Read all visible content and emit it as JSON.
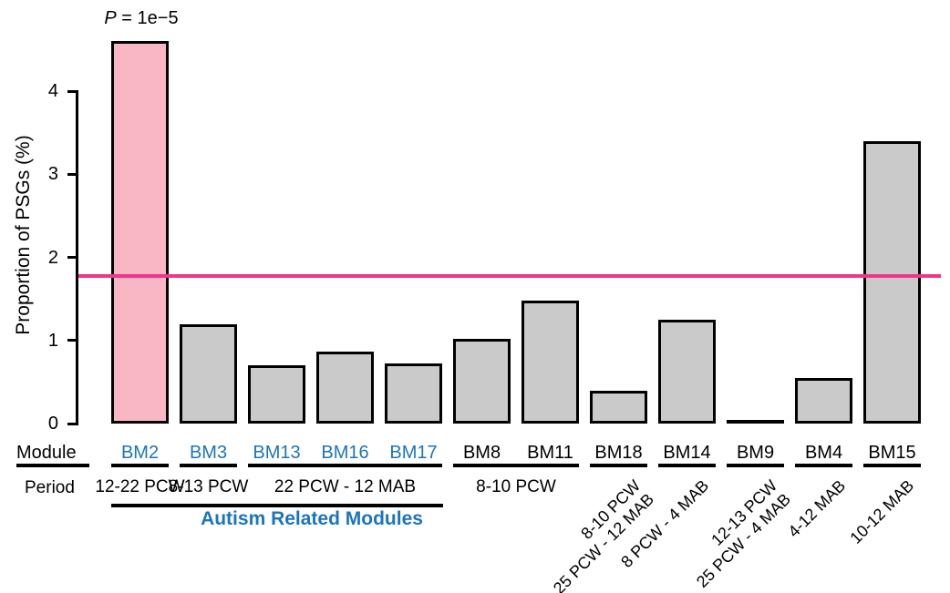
{
  "labels": {
    "module_header": "Module",
    "period_header": "Period",
    "autism_group": "Autism Related Modules"
  },
  "colors": {
    "bar_fill": "#CACACA",
    "highlight_fill": "#F9B7C6",
    "bar_border": "#000000",
    "threshold_line": "#F0368C",
    "autism_blue": "#1B75BC",
    "text": "#000000"
  },
  "chart_data": {
    "type": "bar",
    "title": "",
    "xlabel": "",
    "ylabel": "Proportion of PSGs (%)",
    "ylim": [
      0,
      4
    ],
    "yticks": [
      0,
      1,
      2,
      3,
      4
    ],
    "grid": false,
    "threshold_value": 1.78,
    "annotation": {
      "symbol": "P",
      "text": " = 1e−5",
      "above_module": "BM2"
    },
    "categories": [
      "BM2",
      "BM3",
      "BM13",
      "BM16",
      "BM17",
      "BM8",
      "BM11",
      "BM18",
      "BM14",
      "BM9",
      "BM4",
      "BM15"
    ],
    "values": [
      4.6,
      1.2,
      0.7,
      0.87,
      0.72,
      1.02,
      1.48,
      0.4,
      1.25,
      0.02,
      0.55,
      3.4
    ],
    "bars": [
      {
        "module": "BM2",
        "value": 4.6,
        "highlight": true,
        "autism": true
      },
      {
        "module": "BM3",
        "value": 1.2,
        "highlight": false,
        "autism": true
      },
      {
        "module": "BM13",
        "value": 0.7,
        "highlight": false,
        "autism": true
      },
      {
        "module": "BM16",
        "value": 0.87,
        "highlight": false,
        "autism": true
      },
      {
        "module": "BM17",
        "value": 0.72,
        "highlight": false,
        "autism": true
      },
      {
        "module": "BM8",
        "value": 1.02,
        "highlight": false,
        "autism": false
      },
      {
        "module": "BM11",
        "value": 1.48,
        "highlight": false,
        "autism": false
      },
      {
        "module": "BM18",
        "value": 0.4,
        "highlight": false,
        "autism": false
      },
      {
        "module": "BM14",
        "value": 1.25,
        "highlight": false,
        "autism": false
      },
      {
        "module": "BM9",
        "value": 0.02,
        "highlight": false,
        "autism": false
      },
      {
        "module": "BM4",
        "value": 0.55,
        "highlight": false,
        "autism": false
      },
      {
        "module": "BM15",
        "value": 3.4,
        "highlight": false,
        "autism": false
      }
    ],
    "module_underline_groups": [
      {
        "span": [
          0,
          0
        ]
      },
      {
        "span": [
          1,
          1
        ]
      },
      {
        "span": [
          2,
          4
        ]
      },
      {
        "span": [
          5,
          6
        ]
      },
      {
        "span": [
          7,
          7
        ]
      },
      {
        "span": [
          8,
          8
        ]
      },
      {
        "span": [
          9,
          9
        ]
      },
      {
        "span": [
          10,
          10
        ]
      },
      {
        "span": [
          11,
          11
        ]
      }
    ],
    "period_labels": [
      {
        "text": "12-22 PCW",
        "span": [
          0,
          0
        ]
      },
      {
        "text": "8-13 PCW",
        "span": [
          1,
          1
        ]
      },
      {
        "text": "22 PCW - 12 MAB",
        "span": [
          2,
          4
        ]
      },
      {
        "text": "8-10 PCW",
        "span": [
          5,
          6
        ]
      }
    ],
    "rotated_period_labels": [
      {
        "bar": 7,
        "lines": [
          "8-10 PCW",
          "25 PCW - 12 MAB"
        ]
      },
      {
        "bar": 8,
        "lines": [
          "8 PCW - 4 MAB"
        ]
      },
      {
        "bar": 9,
        "lines": [
          "12-13 PCW",
          "25 PCW - 4 MAB"
        ]
      },
      {
        "bar": 10,
        "lines": [
          "4-12 MAB"
        ]
      },
      {
        "bar": 11,
        "lines": [
          "10-12 MAB"
        ]
      }
    ],
    "autism_group_span": [
      0,
      4
    ],
    "legend": null
  }
}
